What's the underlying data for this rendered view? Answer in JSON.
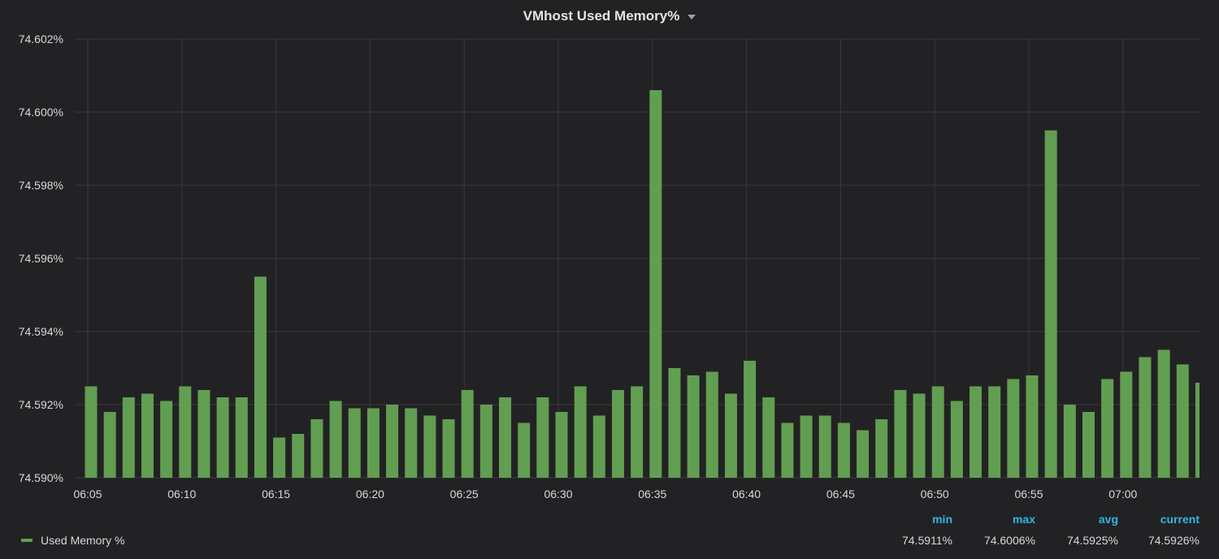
{
  "panel": {
    "title": "VMhost Used Memory%",
    "menu_icon": "caret-down-icon"
  },
  "colors": {
    "background": "#222224",
    "bar": "#629e51",
    "grid": "#3a3a3d",
    "stat_header": "#33b5e5"
  },
  "chart_data": {
    "type": "bar",
    "title": "VMhost Used Memory%",
    "ylim": [
      74.59,
      74.602
    ],
    "yticks": [
      "74.590%",
      "74.592%",
      "74.594%",
      "74.596%",
      "74.598%",
      "74.600%",
      "74.602%"
    ],
    "xticks": [
      "06:05",
      "06:10",
      "06:15",
      "06:20",
      "06:25",
      "06:30",
      "06:35",
      "06:40",
      "06:45",
      "06:50",
      "06:55",
      "07:00"
    ],
    "grid": true,
    "series": [
      {
        "name": "Used Memory %",
        "values": [
          74.5925,
          74.5918,
          74.5922,
          74.5923,
          74.5921,
          74.5925,
          74.5924,
          74.5922,
          74.5922,
          74.5955,
          74.5911,
          74.5912,
          74.5916,
          74.5921,
          74.5919,
          74.5919,
          74.592,
          74.5919,
          74.5917,
          74.5916,
          74.5924,
          74.592,
          74.5922,
          74.5915,
          74.5922,
          74.5918,
          74.5925,
          74.5917,
          74.5924,
          74.5925,
          74.6006,
          74.593,
          74.5928,
          74.5929,
          74.5923,
          74.5932,
          74.5922,
          74.5915,
          74.5917,
          74.5917,
          74.5915,
          74.5913,
          74.5916,
          74.5924,
          74.5923,
          74.5925,
          74.5921,
          74.5925,
          74.5925,
          74.5927,
          74.5928,
          74.5995,
          74.592,
          74.5918,
          74.5927,
          74.5929,
          74.5933,
          74.5935,
          74.5931,
          74.5926
        ]
      }
    ]
  },
  "legend": {
    "series_label": "Used Memory %",
    "headers": {
      "min": "min",
      "max": "max",
      "avg": "avg",
      "current": "current"
    },
    "values": {
      "min": "74.5911%",
      "max": "74.6006%",
      "avg": "74.5925%",
      "current": "74.5926%"
    }
  }
}
